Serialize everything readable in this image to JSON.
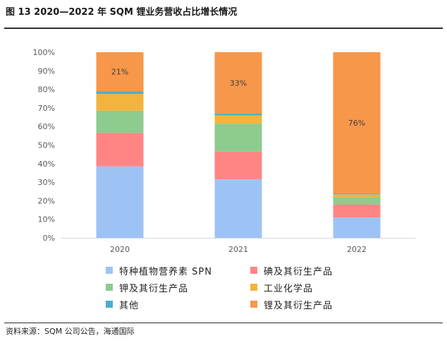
{
  "figure": {
    "title": "图 13 2020—2022 年 SQM 锂业务营收占比增长情况",
    "source": "资料来源：SQM 公司公告，海通国际"
  },
  "chart_data": {
    "type": "bar",
    "stacked": true,
    "categories": [
      "2020",
      "2021",
      "2022"
    ],
    "ylim": [
      0,
      100
    ],
    "yticks": [
      "0%",
      "10%",
      "20%",
      "30%",
      "40%",
      "50%",
      "60%",
      "70%",
      "80%",
      "90%",
      "100%"
    ],
    "grid": false,
    "legend_position": "bottom",
    "series": [
      {
        "name": "特种植物营养素 SPN",
        "color": "#9dc3f5",
        "values": [
          38.5,
          31.5,
          11
        ]
      },
      {
        "name": "碘及其衍生产品",
        "color": "#ff8585",
        "values": [
          18,
          15,
          7
        ]
      },
      {
        "name": "钾及其衍生产品",
        "color": "#8ecb8e",
        "values": [
          12,
          15,
          4
        ]
      },
      {
        "name": "工业化学品",
        "color": "#f2b43c",
        "values": [
          9,
          4.5,
          1.5
        ]
      },
      {
        "name": "其他",
        "color": "#4baecb",
        "values": [
          1.5,
          1,
          0.5
        ]
      },
      {
        "name": "锂及其衍生产品",
        "color": "#f7974a",
        "values": [
          21,
          33,
          76
        ]
      }
    ],
    "data_labels": [
      {
        "category": "2020",
        "series": "锂及其衍生产品",
        "text": "21%"
      },
      {
        "category": "2021",
        "series": "锂及其衍生产品",
        "text": "33%"
      },
      {
        "category": "2022",
        "series": "锂及其衍生产品",
        "text": "76%"
      }
    ]
  }
}
